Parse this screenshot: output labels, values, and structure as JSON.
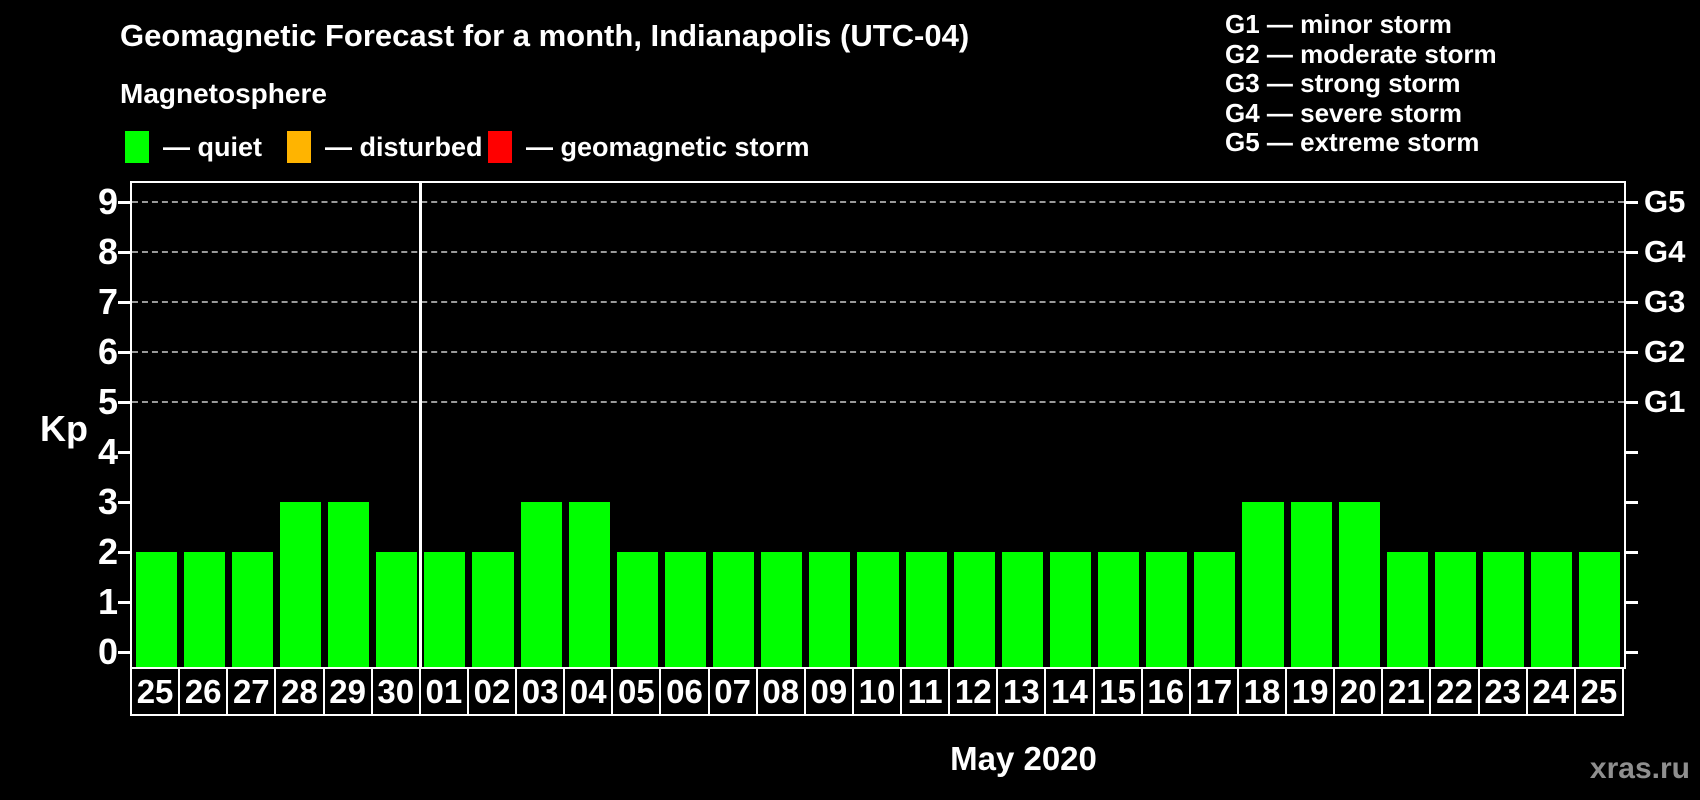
{
  "title": "Geomagnetic Forecast for a month, Indianapolis (UTC-04)",
  "subtitle": "Magnetosphere",
  "legend": {
    "items": [
      {
        "name": "quiet",
        "label": "— quiet",
        "color": "#00ff00"
      },
      {
        "name": "disturbed",
        "label": "— disturbed",
        "color": "#ffb400"
      },
      {
        "name": "storm",
        "label": "— geomagnetic storm",
        "color": "#ff0000"
      }
    ]
  },
  "storm_scale_legend": {
    "lines": [
      "G1 — minor storm",
      "G2 — moderate storm",
      "G3 — strong storm",
      "G4 — severe storm",
      "G5 — extreme storm"
    ]
  },
  "watermark": "xras.ru",
  "chart_data": {
    "type": "bar",
    "title": "Geomagnetic Forecast for a month, Indianapolis (UTC-04)",
    "xlabel": "May 2020",
    "ylabel": "Kp",
    "ylim": [
      0,
      9
    ],
    "yticks": [
      0,
      1,
      2,
      3,
      4,
      5,
      6,
      7,
      8,
      9
    ],
    "gridlines_at": [
      5,
      6,
      7,
      8,
      9
    ],
    "grid_style": "dashed horizontal, only Kp 5-9",
    "legend_position": "top-left",
    "categories": [
      "25",
      "26",
      "27",
      "28",
      "29",
      "30",
      "01",
      "02",
      "03",
      "04",
      "05",
      "06",
      "07",
      "08",
      "09",
      "10",
      "11",
      "12",
      "13",
      "14",
      "15",
      "16",
      "17",
      "18",
      "19",
      "20",
      "21",
      "22",
      "23",
      "24",
      "25"
    ],
    "values": [
      2,
      2,
      2,
      3,
      3,
      2,
      2,
      2,
      3,
      3,
      2,
      2,
      2,
      2,
      2,
      2,
      2,
      2,
      2,
      2,
      2,
      2,
      2,
      3,
      3,
      3,
      2,
      2,
      2,
      2,
      2
    ],
    "month_boundary_after_index": 5,
    "right_axis_labels": [
      {
        "kp": 5,
        "label": "G1"
      },
      {
        "kp": 6,
        "label": "G2"
      },
      {
        "kp": 7,
        "label": "G3"
      },
      {
        "kp": 8,
        "label": "G4"
      },
      {
        "kp": 9,
        "label": "G5"
      }
    ],
    "colors": {
      "quiet": "#00ff00",
      "disturbed": "#ffb400",
      "storm": "#ff0000"
    },
    "thresholds": {
      "disturbed_min": 4,
      "storm_min": 5
    }
  }
}
